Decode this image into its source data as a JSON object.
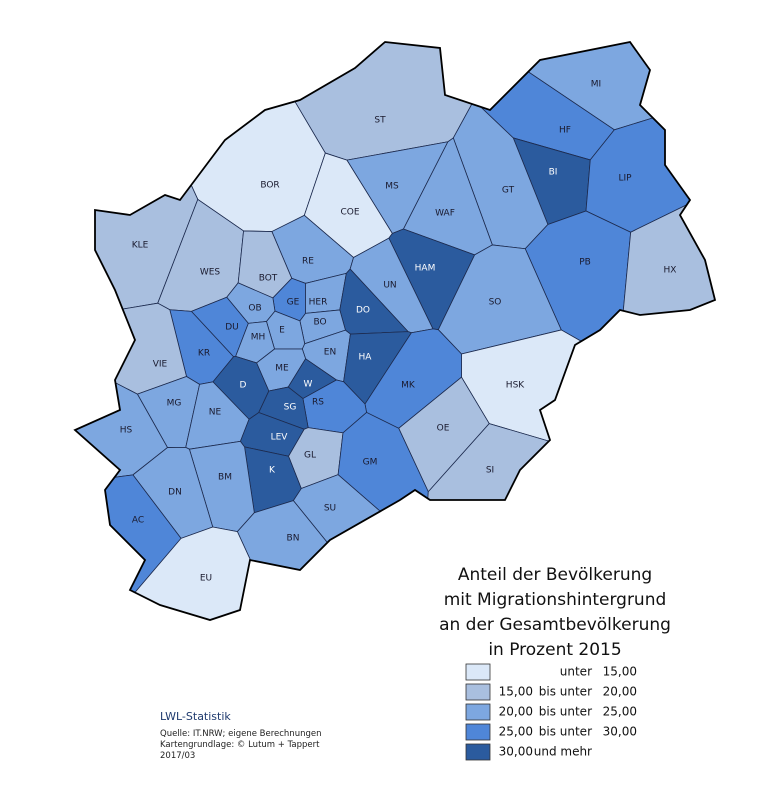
{
  "map": {
    "regions": [
      {
        "label": "MI",
        "color": "#7da7e0"
      },
      {
        "label": "ST",
        "color": "#a9bfdf"
      },
      {
        "label": "HF",
        "color": "#4f86d8"
      },
      {
        "label": "BI",
        "color": "#2b5b9e"
      },
      {
        "label": "LIP",
        "color": "#4f86d8"
      },
      {
        "label": "BOR",
        "color": "#dbe8f8"
      },
      {
        "label": "MS",
        "color": "#7da7e0"
      },
      {
        "label": "GT",
        "color": "#7da7e0"
      },
      {
        "label": "COE",
        "color": "#dbe8f8"
      },
      {
        "label": "WAF",
        "color": "#7da7e0"
      },
      {
        "label": "KLE",
        "color": "#a9bfdf"
      },
      {
        "label": "WES",
        "color": "#a9bfdf"
      },
      {
        "label": "RE",
        "color": "#7da7e0"
      },
      {
        "label": "HAM",
        "color": "#2b5b9e"
      },
      {
        "label": "PB",
        "color": "#4f86d8"
      },
      {
        "label": "HX",
        "color": "#a9bfdf"
      },
      {
        "label": "BOT",
        "color": "#a9bfdf"
      },
      {
        "label": "GE",
        "color": "#4f86d8"
      },
      {
        "label": "HER",
        "color": "#7da7e0"
      },
      {
        "label": "UN",
        "color": "#7da7e0"
      },
      {
        "label": "DO",
        "color": "#2b5b9e"
      },
      {
        "label": "OB",
        "color": "#7da7e0"
      },
      {
        "label": "BO",
        "color": "#7da7e0"
      },
      {
        "label": "SO",
        "color": "#7da7e0"
      },
      {
        "label": "DU",
        "color": "#4f86d8"
      },
      {
        "label": "E",
        "color": "#7da7e0"
      },
      {
        "label": "MH",
        "color": "#7da7e0"
      },
      {
        "label": "EN",
        "color": "#7da7e0"
      },
      {
        "label": "HA",
        "color": "#2b5b9e"
      },
      {
        "label": "KR",
        "color": "#4f86d8"
      },
      {
        "label": "VIE",
        "color": "#a9bfdf"
      },
      {
        "label": "HSK",
        "color": "#dbe8f8"
      },
      {
        "label": "ME",
        "color": "#7da7e0"
      },
      {
        "label": "D",
        "color": "#2b5b9e"
      },
      {
        "label": "W",
        "color": "#2b5b9e"
      },
      {
        "label": "MK",
        "color": "#4f86d8"
      },
      {
        "label": "MG",
        "color": "#7da7e0"
      },
      {
        "label": "RS",
        "color": "#4f86d8"
      },
      {
        "label": "SG",
        "color": "#2b5b9e"
      },
      {
        "label": "NE",
        "color": "#7da7e0"
      },
      {
        "label": "HS",
        "color": "#7da7e0"
      },
      {
        "label": "OE",
        "color": "#a9bfdf"
      },
      {
        "label": "LEV",
        "color": "#2b5b9e"
      },
      {
        "label": "GL",
        "color": "#a9bfdf"
      },
      {
        "label": "GM",
        "color": "#4f86d8"
      },
      {
        "label": "K",
        "color": "#2b5b9e"
      },
      {
        "label": "SI",
        "color": "#a9bfdf"
      },
      {
        "label": "BM",
        "color": "#7da7e0"
      },
      {
        "label": "DN",
        "color": "#7da7e0"
      },
      {
        "label": "SU",
        "color": "#7da7e0"
      },
      {
        "label": "AC",
        "color": "#4f86d8"
      },
      {
        "label": "BN",
        "color": "#7da7e0"
      },
      {
        "label": "EU",
        "color": "#dbe8f8"
      }
    ],
    "legend": {
      "title": [
        "Anteil der Bevölkerung",
        "mit Migrationshintergrund",
        "an der Gesamtbevölkerung",
        "in Prozent 2015"
      ],
      "items": [
        {
          "color": "#dbe8f8",
          "op": "unter",
          "to": "15,00"
        },
        {
          "color": "#a9bfdf",
          "from": "15,00",
          "op": "bis unter",
          "to": "20,00"
        },
        {
          "color": "#7da7e0",
          "from": "20,00",
          "op": "bis unter",
          "to": "25,00"
        },
        {
          "color": "#4f86d8",
          "from": "25,00",
          "op": "bis unter",
          "to": "30,00"
        },
        {
          "color": "#2b5b9e",
          "from": "30,00",
          "op": "und mehr"
        }
      ]
    },
    "footer": {
      "org": "LWL-Statistik",
      "notes": [
        "Quelle: IT.NRW; eigene Berechnungen",
        "Kartengrundlage: © Lutum + Tappert",
        "2017/03"
      ]
    }
  }
}
